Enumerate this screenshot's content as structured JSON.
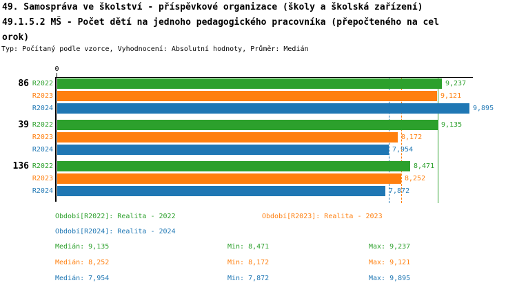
{
  "header": {
    "title_line1": "49. Samospráva ve školství - příspěvkové organizace (školy a školská zařízení)",
    "title_line2": "49.1.5.2 MŠ - Počet dětí na jednoho pedagogického pracovníka (přepočteného na cel",
    "title_line3": "orok)",
    "subtitle": "Typ: Počítaný podle vzorce, Vyhodnocení: Absolutní hodnoty, Průměr: Medián"
  },
  "colors": {
    "r2022_green": "#2ca02c",
    "r2023_orange": "#ff7f0e",
    "r2024_blue": "#1f77b4",
    "axis_black": "#000000"
  },
  "chart_data": {
    "type": "bar",
    "orientation": "horizontal",
    "x_axis": {
      "zero_label": "0",
      "xlim": [
        0,
        9895
      ],
      "grid": false
    },
    "series": [
      {
        "id": "R2022",
        "name": "Realita - 2022",
        "color": "#2ca02c"
      },
      {
        "id": "R2023",
        "name": "Realita - 2023",
        "color": "#ff7f0e"
      },
      {
        "id": "R2024",
        "name": "Realita - 2024",
        "color": "#1f77b4"
      }
    ],
    "groups": [
      {
        "label": "86",
        "values": [
          9237,
          9121,
          9895
        ],
        "value_labels": [
          "9,237",
          "9,121",
          "9,895"
        ]
      },
      {
        "label": "39",
        "values": [
          9135,
          8172,
          7954
        ],
        "value_labels": [
          "9,135",
          "8,172",
          "7,954"
        ]
      },
      {
        "label": "136",
        "values": [
          8471,
          8252,
          7872
        ],
        "value_labels": [
          "8,471",
          "8,252",
          "7,872"
        ]
      }
    ],
    "median_lines": [
      {
        "series": "R2022",
        "value": 9135,
        "style": "solid",
        "color": "#2ca02c"
      },
      {
        "series": "R2023",
        "value": 8252,
        "style": "dashed",
        "color": "#ff7f0e"
      },
      {
        "series": "R2024",
        "value": 7954,
        "style": "dashed",
        "color": "#1f77b4"
      }
    ]
  },
  "legend": [
    {
      "series": "R2022",
      "text": "Období[R2022]: Realita - 2022",
      "color": "#2ca02c",
      "col": 0,
      "row": 0
    },
    {
      "series": "R2023",
      "text": "Období[R2023]: Realita - 2023",
      "color": "#ff7f0e",
      "col": 1,
      "row": 0
    },
    {
      "series": "R2024",
      "text": "Období[R2024]: Realita - 2024",
      "color": "#1f77b4",
      "col": 0,
      "row": 1
    }
  ],
  "stats": [
    {
      "series": "R2022",
      "color": "#2ca02c",
      "median": "Medián: 9,135",
      "min": "Min: 8,471",
      "max": "Max: 9,237"
    },
    {
      "series": "R2023",
      "color": "#ff7f0e",
      "median": "Medián: 8,252",
      "min": "Min: 8,172",
      "max": "Max: 9,121"
    },
    {
      "series": "R2024",
      "color": "#1f77b4",
      "median": "Medián: 7,954",
      "min": "Min: 7,872",
      "max": "Max: 9,895"
    }
  ]
}
